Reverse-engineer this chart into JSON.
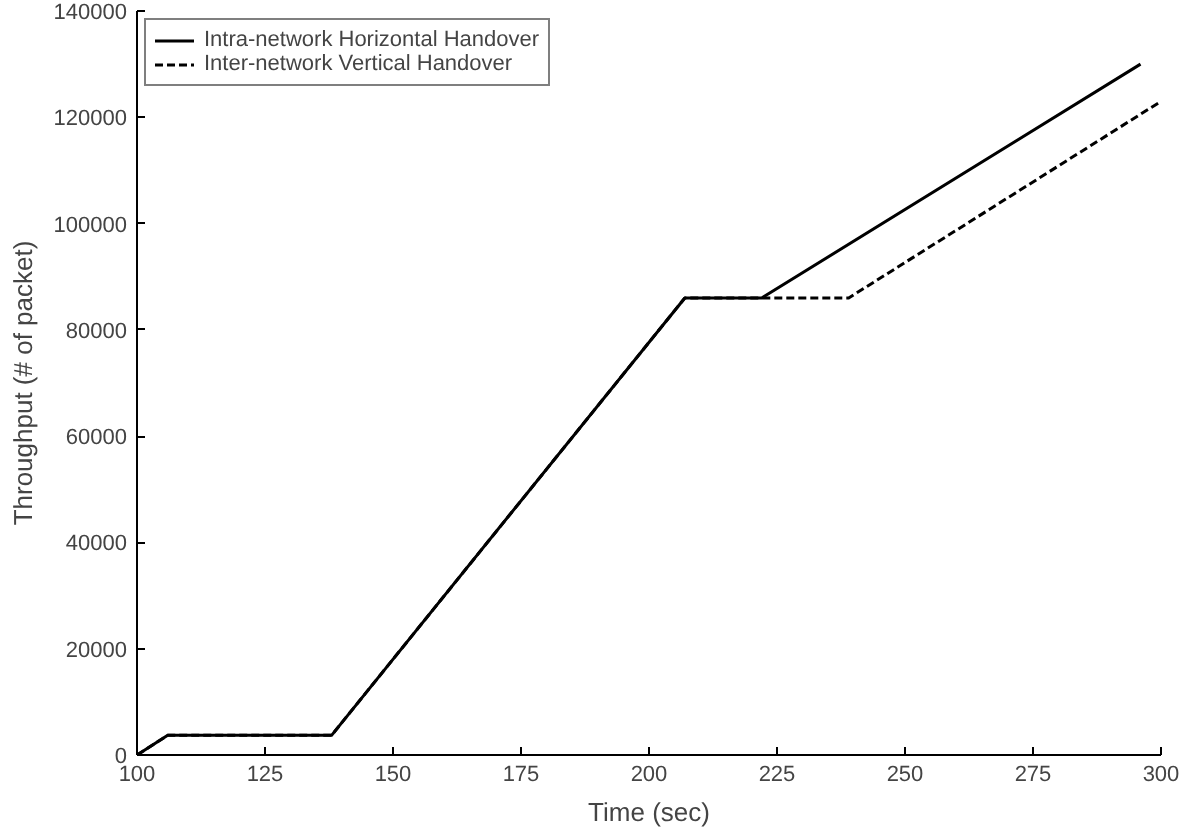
{
  "chart_data": {
    "type": "line",
    "xlabel": "Time (sec)",
    "ylabel": "Throughput (# of packet)",
    "xlim": [
      100,
      300
    ],
    "xticks": [
      100,
      125,
      150,
      175,
      200,
      225,
      250,
      275,
      300
    ],
    "ylim": [
      0,
      140000
    ],
    "yticks": [
      0,
      20000,
      40000,
      60000,
      80000,
      100000,
      120000,
      140000
    ],
    "grid": false,
    "legend": "top left",
    "series": [
      {
        "name": "Intra-network Horizontal Handover",
        "color": "#000000",
        "line_style": "solid",
        "x": [
          100,
          106,
          138,
          207,
          222,
          296
        ],
        "values": [
          0,
          3700,
          3700,
          86000,
          86000,
          130000
        ]
      },
      {
        "name": "Inter-network Vertical Handover",
        "color": "#000000",
        "line_style": "dashed",
        "x": [
          100,
          106,
          138,
          207,
          239,
          300
        ],
        "values": [
          0,
          3700,
          3700,
          86000,
          86000,
          123000
        ]
      }
    ]
  }
}
